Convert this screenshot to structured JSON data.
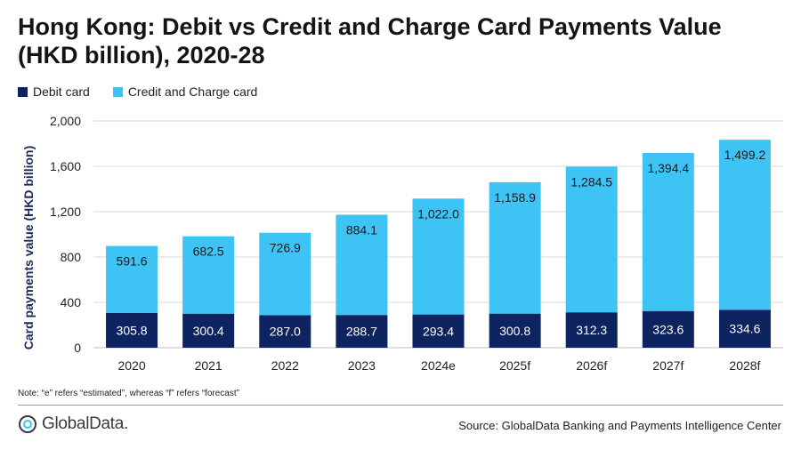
{
  "title": "Hong Kong: Debit vs Credit and Charge Card Payments Value (HKD billion), 2020-28",
  "note": "Note:  “e” refers “estimated”, whereas “f” refers “forecast”",
  "source": "Source: GlobalData Banking and Payments Intelligence Center",
  "logo_text": "GlobalData.",
  "colors": {
    "debit": "#0d2460",
    "credit": "#3ec3f5",
    "grid": "#d9d9d9",
    "axis": "#bfbfbf"
  },
  "chart_data": {
    "type": "bar",
    "stacked": true,
    "ylabel": "Card payments value (HKD billion)",
    "ylim": [
      0,
      2000
    ],
    "yticks": [
      0,
      400,
      800,
      1200,
      1600,
      2000
    ],
    "ytick_labels": [
      "0",
      "400",
      "800",
      "1,200",
      "1,600",
      "2,000"
    ],
    "grid": true,
    "legend_position": "top-left",
    "categories": [
      "2020",
      "2021",
      "2022",
      "2023",
      "2024e",
      "2025f",
      "2026f",
      "2027f",
      "2028f"
    ],
    "series": [
      {
        "name": "Debit card",
        "values": [
          305.8,
          300.4,
          287.0,
          288.7,
          293.4,
          300.8,
          312.3,
          323.6,
          334.6
        ],
        "labels": [
          "305.8",
          "300.4",
          "287.0",
          "288.7",
          "293.4",
          "300.8",
          "312.3",
          "323.6",
          "334.6"
        ]
      },
      {
        "name": "Credit and Charge card",
        "values": [
          591.6,
          682.5,
          726.9,
          884.1,
          1022.0,
          1158.9,
          1284.5,
          1394.4,
          1499.2
        ],
        "labels": [
          "591.6",
          "682.5",
          "726.9",
          "884.1",
          "1,022.0",
          "1,158.9",
          "1,284.5",
          "1,394.4",
          "1,499.2"
        ]
      }
    ]
  }
}
